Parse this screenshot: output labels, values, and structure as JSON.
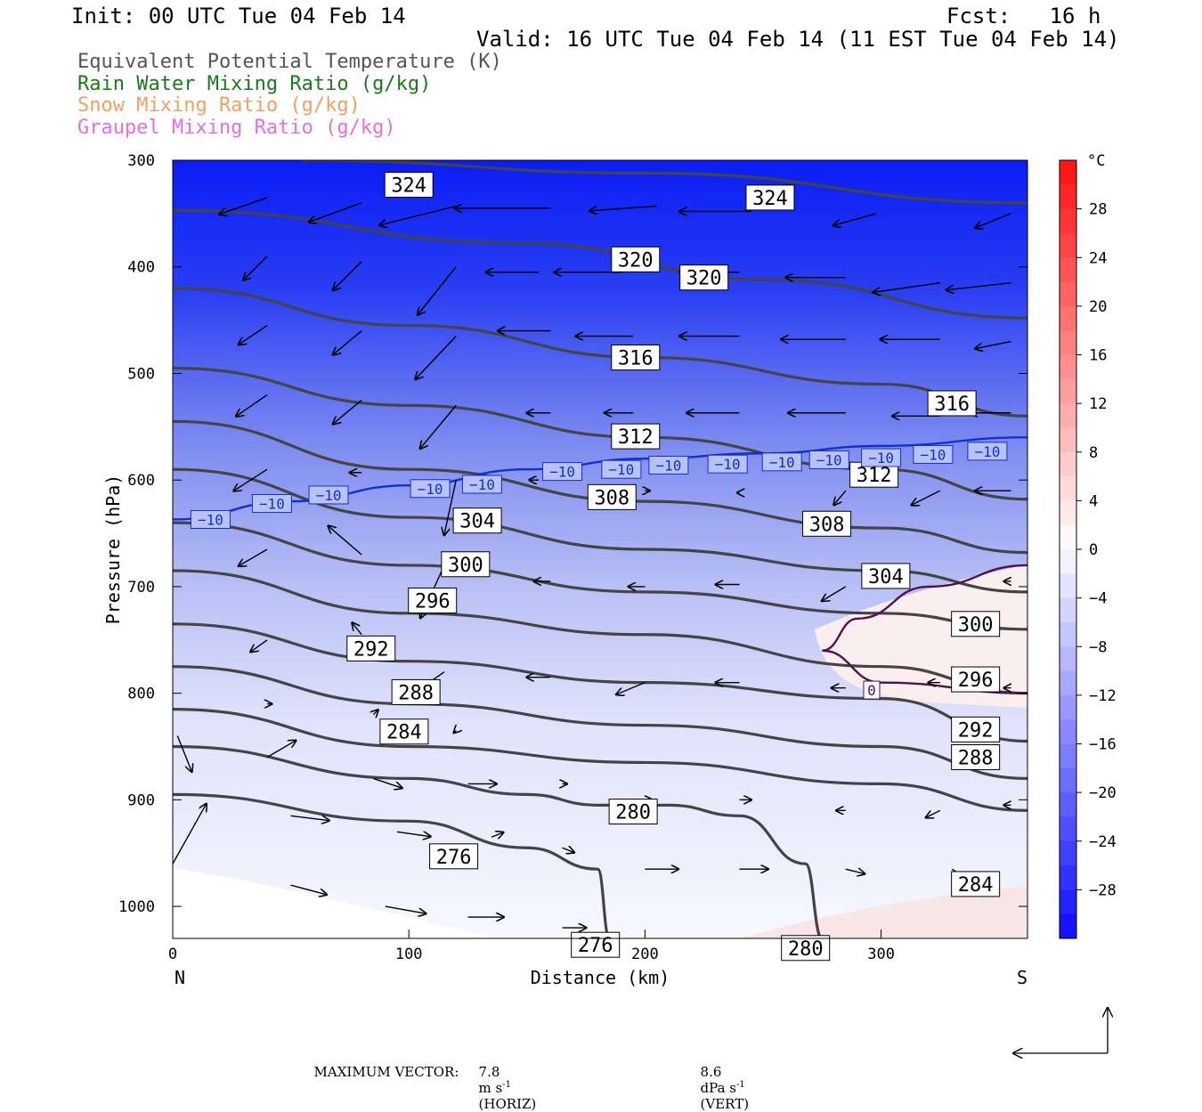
{
  "header": {
    "init": "Init: 00 UTC Tue 04 Feb 14",
    "fcst": "Fcst:   16 h",
    "valid": "Valid: 16 UTC Tue 04 Feb 14 (11 EST Tue 04 Feb 14)"
  },
  "legend": [
    {
      "label": "Equivalent Potential Temperature (K)",
      "color": "#555555"
    },
    {
      "label": "Rain Water Mixing Ratio (g/kg)",
      "color": "#1a7a1a"
    },
    {
      "label": "Snow Mixing Ratio (g/kg)",
      "color": "#f0a060"
    },
    {
      "label": "Graupel Mixing Ratio (g/kg)",
      "color": "#e070e0"
    }
  ],
  "chart_data": {
    "type": "cross-section",
    "xlabel": "Distance (km)",
    "ylabel": "Pressure (hPa)",
    "x_ticks": [
      0,
      100,
      200,
      300
    ],
    "x_range": [
      0,
      362
    ],
    "y_ticks": [
      300,
      400,
      500,
      600,
      700,
      800,
      900,
      1000
    ],
    "y_range": [
      300,
      1030
    ],
    "endpoints": {
      "left": "N",
      "right": "S"
    },
    "colorbar": {
      "unit": "°C",
      "ticks": [
        28,
        24,
        20,
        16,
        12,
        8,
        4,
        0,
        -4,
        -8,
        -12,
        -16,
        -20,
        -24,
        -28
      ],
      "range": [
        -32,
        32
      ]
    },
    "theta_e_contours": [
      {
        "value": 324,
        "points": [
          [
            55,
            300
          ],
          [
            200,
            312
          ],
          [
            362,
            340
          ]
        ],
        "labels": [
          [
            100,
            323
          ],
          [
            253,
            335
          ]
        ]
      },
      {
        "value": 320,
        "points": [
          [
            0,
            347
          ],
          [
            150,
            378
          ],
          [
            250,
            412
          ],
          [
            362,
            448
          ]
        ],
        "labels": [
          [
            196,
            393
          ],
          [
            225,
            410
          ]
        ]
      },
      {
        "value": 316,
        "points": [
          [
            0,
            420
          ],
          [
            100,
            455
          ],
          [
            200,
            485
          ],
          [
            300,
            510
          ],
          [
            362,
            540
          ]
        ],
        "labels": [
          [
            196,
            485
          ],
          [
            330,
            528
          ]
        ]
      },
      {
        "value": 312,
        "points": [
          [
            0,
            495
          ],
          [
            100,
            530
          ],
          [
            200,
            560
          ],
          [
            300,
            590
          ],
          [
            362,
            618
          ]
        ],
        "labels": [
          [
            196,
            559
          ],
          [
            297,
            595
          ]
        ]
      },
      {
        "value": 308,
        "points": [
          [
            0,
            545
          ],
          [
            100,
            590
          ],
          [
            200,
            620
          ],
          [
            300,
            645
          ],
          [
            362,
            668
          ]
        ],
        "labels": [
          [
            186,
            616
          ],
          [
            277,
            641
          ]
        ]
      },
      {
        "value": 304,
        "points": [
          [
            0,
            590
          ],
          [
            100,
            635
          ],
          [
            200,
            665
          ],
          [
            300,
            685
          ],
          [
            362,
            705
          ]
        ],
        "labels": [
          [
            129,
            638
          ],
          [
            302,
            690
          ]
        ]
      },
      {
        "value": 300,
        "points": [
          [
            0,
            640
          ],
          [
            100,
            680
          ],
          [
            200,
            705
          ],
          [
            300,
            725
          ],
          [
            362,
            740
          ]
        ],
        "labels": [
          [
            124,
            679
          ],
          [
            340,
            735
          ]
        ]
      },
      {
        "value": 296,
        "points": [
          [
            0,
            685
          ],
          [
            100,
            725
          ],
          [
            200,
            745
          ],
          [
            300,
            775
          ],
          [
            362,
            800
          ]
        ],
        "labels": [
          [
            110,
            713
          ],
          [
            340,
            787
          ]
        ]
      },
      {
        "value": 292,
        "points": [
          [
            0,
            735
          ],
          [
            100,
            770
          ],
          [
            200,
            790
          ],
          [
            300,
            805
          ],
          [
            362,
            845
          ]
        ],
        "labels": [
          [
            84,
            758
          ],
          [
            340,
            834
          ]
        ]
      },
      {
        "value": 288,
        "points": [
          [
            0,
            775
          ],
          [
            100,
            810
          ],
          [
            200,
            830
          ],
          [
            300,
            850
          ],
          [
            362,
            880
          ]
        ],
        "labels": [
          [
            103,
            799
          ],
          [
            340,
            860
          ]
        ]
      },
      {
        "value": 284,
        "points": [
          [
            0,
            815
          ],
          [
            100,
            850
          ],
          [
            200,
            865
          ],
          [
            300,
            885
          ],
          [
            362,
            910
          ]
        ],
        "labels": [
          [
            98,
            836
          ],
          [
            340,
            979
          ]
        ]
      },
      {
        "value": 280,
        "points": [
          [
            0,
            850
          ],
          [
            100,
            880
          ],
          [
            150,
            895
          ],
          [
            180,
            905
          ],
          [
            210,
            905
          ],
          [
            240,
            915
          ],
          [
            268,
            960
          ],
          [
            275,
            1030
          ]
        ],
        "labels": [
          [
            195,
            911
          ],
          [
            268,
            1039
          ]
        ]
      },
      {
        "value": 276,
        "points": [
          [
            0,
            895
          ],
          [
            100,
            920
          ],
          [
            150,
            945
          ],
          [
            180,
            965
          ],
          [
            185,
            1030
          ]
        ],
        "labels": [
          [
            119,
            953
          ],
          [
            179,
            1036
          ]
        ]
      }
    ],
    "temperature_contours": [
      {
        "value": -10,
        "points": [
          [
            0,
            637
          ],
          [
            50,
            620
          ],
          [
            100,
            605
          ],
          [
            150,
            590
          ],
          [
            200,
            580
          ],
          [
            250,
            575
          ],
          [
            300,
            568
          ],
          [
            362,
            560
          ]
        ],
        "labels": [
          [
            16,
            637
          ],
          [
            42,
            622
          ],
          [
            66,
            614
          ],
          [
            109,
            608
          ],
          [
            131,
            604
          ],
          [
            165,
            592
          ],
          [
            190,
            590
          ],
          [
            210,
            586
          ],
          [
            235,
            585
          ],
          [
            258,
            583
          ],
          [
            278,
            581
          ],
          [
            300,
            579
          ],
          [
            322,
            576
          ],
          [
            345,
            573
          ]
        ]
      },
      {
        "value": 0,
        "points": [
          [
            362,
            680
          ],
          [
            320,
            700
          ],
          [
            290,
            730
          ],
          [
            275,
            760
          ],
          [
            300,
            790
          ],
          [
            362,
            800
          ]
        ],
        "labels": [
          [
            296,
            797
          ]
        ]
      }
    ],
    "wind_vectors": [
      {
        "x": 40,
        "p": 335,
        "dx": -20,
        "dy": 7
      },
      {
        "x": 80,
        "p": 340,
        "dx": -22,
        "dy": 8
      },
      {
        "x": 120,
        "p": 343,
        "dx": -32,
        "dy": 8
      },
      {
        "x": 160,
        "p": 345,
        "dx": -40,
        "dy": 0
      },
      {
        "x": 205,
        "p": 343,
        "dx": -28,
        "dy": 2
      },
      {
        "x": 245,
        "p": 348,
        "dx": -30,
        "dy": 0
      },
      {
        "x": 298,
        "p": 350,
        "dx": -18,
        "dy": 5
      },
      {
        "x": 355,
        "p": 350,
        "dx": -15,
        "dy": 6
      },
      {
        "x": 40,
        "p": 390,
        "dx": -10,
        "dy": 10
      },
      {
        "x": 80,
        "p": 395,
        "dx": -12,
        "dy": 12
      },
      {
        "x": 120,
        "p": 400,
        "dx": -16,
        "dy": 20
      },
      {
        "x": 155,
        "p": 405,
        "dx": -22,
        "dy": 0
      },
      {
        "x": 190,
        "p": 405,
        "dx": -28,
        "dy": 0
      },
      {
        "x": 240,
        "p": 405,
        "dx": -25,
        "dy": 0
      },
      {
        "x": 285,
        "p": 410,
        "dx": -25,
        "dy": 0
      },
      {
        "x": 325,
        "p": 415,
        "dx": -28,
        "dy": 4
      },
      {
        "x": 355,
        "p": 415,
        "dx": -27,
        "dy": 3
      },
      {
        "x": 40,
        "p": 455,
        "dx": -12,
        "dy": 8
      },
      {
        "x": 80,
        "p": 460,
        "dx": -12,
        "dy": 10
      },
      {
        "x": 120,
        "p": 465,
        "dx": -17,
        "dy": 18
      },
      {
        "x": 160,
        "p": 460,
        "dx": -22,
        "dy": 0
      },
      {
        "x": 195,
        "p": 465,
        "dx": -24,
        "dy": 0
      },
      {
        "x": 240,
        "p": 465,
        "dx": -25,
        "dy": 0
      },
      {
        "x": 285,
        "p": 468,
        "dx": -27,
        "dy": 0
      },
      {
        "x": 325,
        "p": 468,
        "dx": -25,
        "dy": 0
      },
      {
        "x": 355,
        "p": 470,
        "dx": -15,
        "dy": 3
      },
      {
        "x": 40,
        "p": 520,
        "dx": -13,
        "dy": 9
      },
      {
        "x": 80,
        "p": 525,
        "dx": -12,
        "dy": 10
      },
      {
        "x": 120,
        "p": 530,
        "dx": -15,
        "dy": 18
      },
      {
        "x": 160,
        "p": 537,
        "dx": -10,
        "dy": 0
      },
      {
        "x": 195,
        "p": 537,
        "dx": -12,
        "dy": 0
      },
      {
        "x": 240,
        "p": 537,
        "dx": -22,
        "dy": 0
      },
      {
        "x": 285,
        "p": 537,
        "dx": -24,
        "dy": 0
      },
      {
        "x": 325,
        "p": 540,
        "dx": -20,
        "dy": 0
      },
      {
        "x": 355,
        "p": 537,
        "dx": -17,
        "dy": 0
      },
      {
        "x": 40,
        "p": 590,
        "dx": -14,
        "dy": 9
      },
      {
        "x": 80,
        "p": 593,
        "dx": -5,
        "dy": 0
      },
      {
        "x": 120,
        "p": 600,
        "dx": -5,
        "dy": 23
      },
      {
        "x": 155,
        "p": 600,
        "dx": -4,
        "dy": 0
      },
      {
        "x": 200,
        "p": 610,
        "dx": 2,
        "dy": 0
      },
      {
        "x": 240,
        "p": 612,
        "dx": -1,
        "dy": 0
      },
      {
        "x": 285,
        "p": 610,
        "dx": -5,
        "dy": 6
      },
      {
        "x": 325,
        "p": 610,
        "dx": -12,
        "dy": 6
      },
      {
        "x": 355,
        "p": 610,
        "dx": -15,
        "dy": 0
      },
      {
        "x": 40,
        "p": 665,
        "dx": -12,
        "dy": 7
      },
      {
        "x": 80,
        "p": 670,
        "dx": -14,
        "dy": -12
      },
      {
        "x": 115,
        "p": 680,
        "dx": -10,
        "dy": 22
      },
      {
        "x": 160,
        "p": 695,
        "dx": -7,
        "dy": 0
      },
      {
        "x": 200,
        "p": 700,
        "dx": -7,
        "dy": 0
      },
      {
        "x": 240,
        "p": 698,
        "dx": -10,
        "dy": 0
      },
      {
        "x": 285,
        "p": 700,
        "dx": -10,
        "dy": 6
      },
      {
        "x": 355,
        "p": 695,
        "dx": -3,
        "dy": 0
      },
      {
        "x": 40,
        "p": 750,
        "dx": -7,
        "dy": 5
      },
      {
        "x": 80,
        "p": 745,
        "dx": -4,
        "dy": -5
      },
      {
        "x": 115,
        "p": 780,
        "dx": -10,
        "dy": 7
      },
      {
        "x": 160,
        "p": 785,
        "dx": -10,
        "dy": 0
      },
      {
        "x": 200,
        "p": 790,
        "dx": -12,
        "dy": 5
      },
      {
        "x": 240,
        "p": 790,
        "dx": -10,
        "dy": 0
      },
      {
        "x": 285,
        "p": 795,
        "dx": -6,
        "dy": 0
      },
      {
        "x": 325,
        "p": 790,
        "dx": -5,
        "dy": 0
      },
      {
        "x": 355,
        "p": 795,
        "dx": -3,
        "dy": 0
      },
      {
        "x": 40,
        "p": 810,
        "dx": 2,
        "dy": 0
      },
      {
        "x": 85,
        "p": 820,
        "dx": 2,
        "dy": -2
      },
      {
        "x": 120,
        "p": 835,
        "dx": -1,
        "dy": 1
      },
      {
        "x": 40,
        "p": 860,
        "dx": 12,
        "dy": -7
      },
      {
        "x": 85,
        "p": 880,
        "dx": 12,
        "dy": 4
      },
      {
        "x": 125,
        "p": 885,
        "dx": 12,
        "dy": 0
      },
      {
        "x": 165,
        "p": 885,
        "dx": 2,
        "dy": 0
      },
      {
        "x": 200,
        "p": 900,
        "dx": 3,
        "dy": 0
      },
      {
        "x": 240,
        "p": 900,
        "dx": 5,
        "dy": 0
      },
      {
        "x": 285,
        "p": 910,
        "dx": -4,
        "dy": 0
      },
      {
        "x": 325,
        "p": 910,
        "dx": -6,
        "dy": 3
      },
      {
        "x": 355,
        "p": 905,
        "dx": -3,
        "dy": 0
      },
      {
        "x": 2,
        "p": 840,
        "dx": 6,
        "dy": 15
      },
      {
        "x": 50,
        "p": 915,
        "dx": 16,
        "dy": 2
      },
      {
        "x": 95,
        "p": 930,
        "dx": 14,
        "dy": 2
      },
      {
        "x": 135,
        "p": 935,
        "dx": 5,
        "dy": -2
      },
      {
        "x": 165,
        "p": 945,
        "dx": 5,
        "dy": 2
      },
      {
        "x": 200,
        "p": 965,
        "dx": 14,
        "dy": 0
      },
      {
        "x": 240,
        "p": 965,
        "dx": 12,
        "dy": 0
      },
      {
        "x": 285,
        "p": 965,
        "dx": 8,
        "dy": 2
      },
      {
        "x": 330,
        "p": 965,
        "dx": 8,
        "dy": 5
      },
      {
        "x": 0,
        "p": 960,
        "dx": 14,
        "dy": -25
      },
      {
        "x": 50,
        "p": 980,
        "dx": 15,
        "dy": 4
      },
      {
        "x": 90,
        "p": 1000,
        "dx": 17,
        "dy": 3
      },
      {
        "x": 125,
        "p": 1010,
        "dx": 15,
        "dy": 0
      },
      {
        "x": 165,
        "p": 1020,
        "dx": 10,
        "dy": 0
      }
    ],
    "max_vector": {
      "label": "MAXIMUM VECTOR:",
      "horiz_value": "7.8",
      "horiz_unit": "m s",
      "horiz_exp": "-1",
      "horiz_tag": "(HORIZ)",
      "vert_value": "8.6",
      "vert_unit": "dPa s",
      "vert_exp": "-1",
      "vert_tag": "(VERT)"
    }
  }
}
